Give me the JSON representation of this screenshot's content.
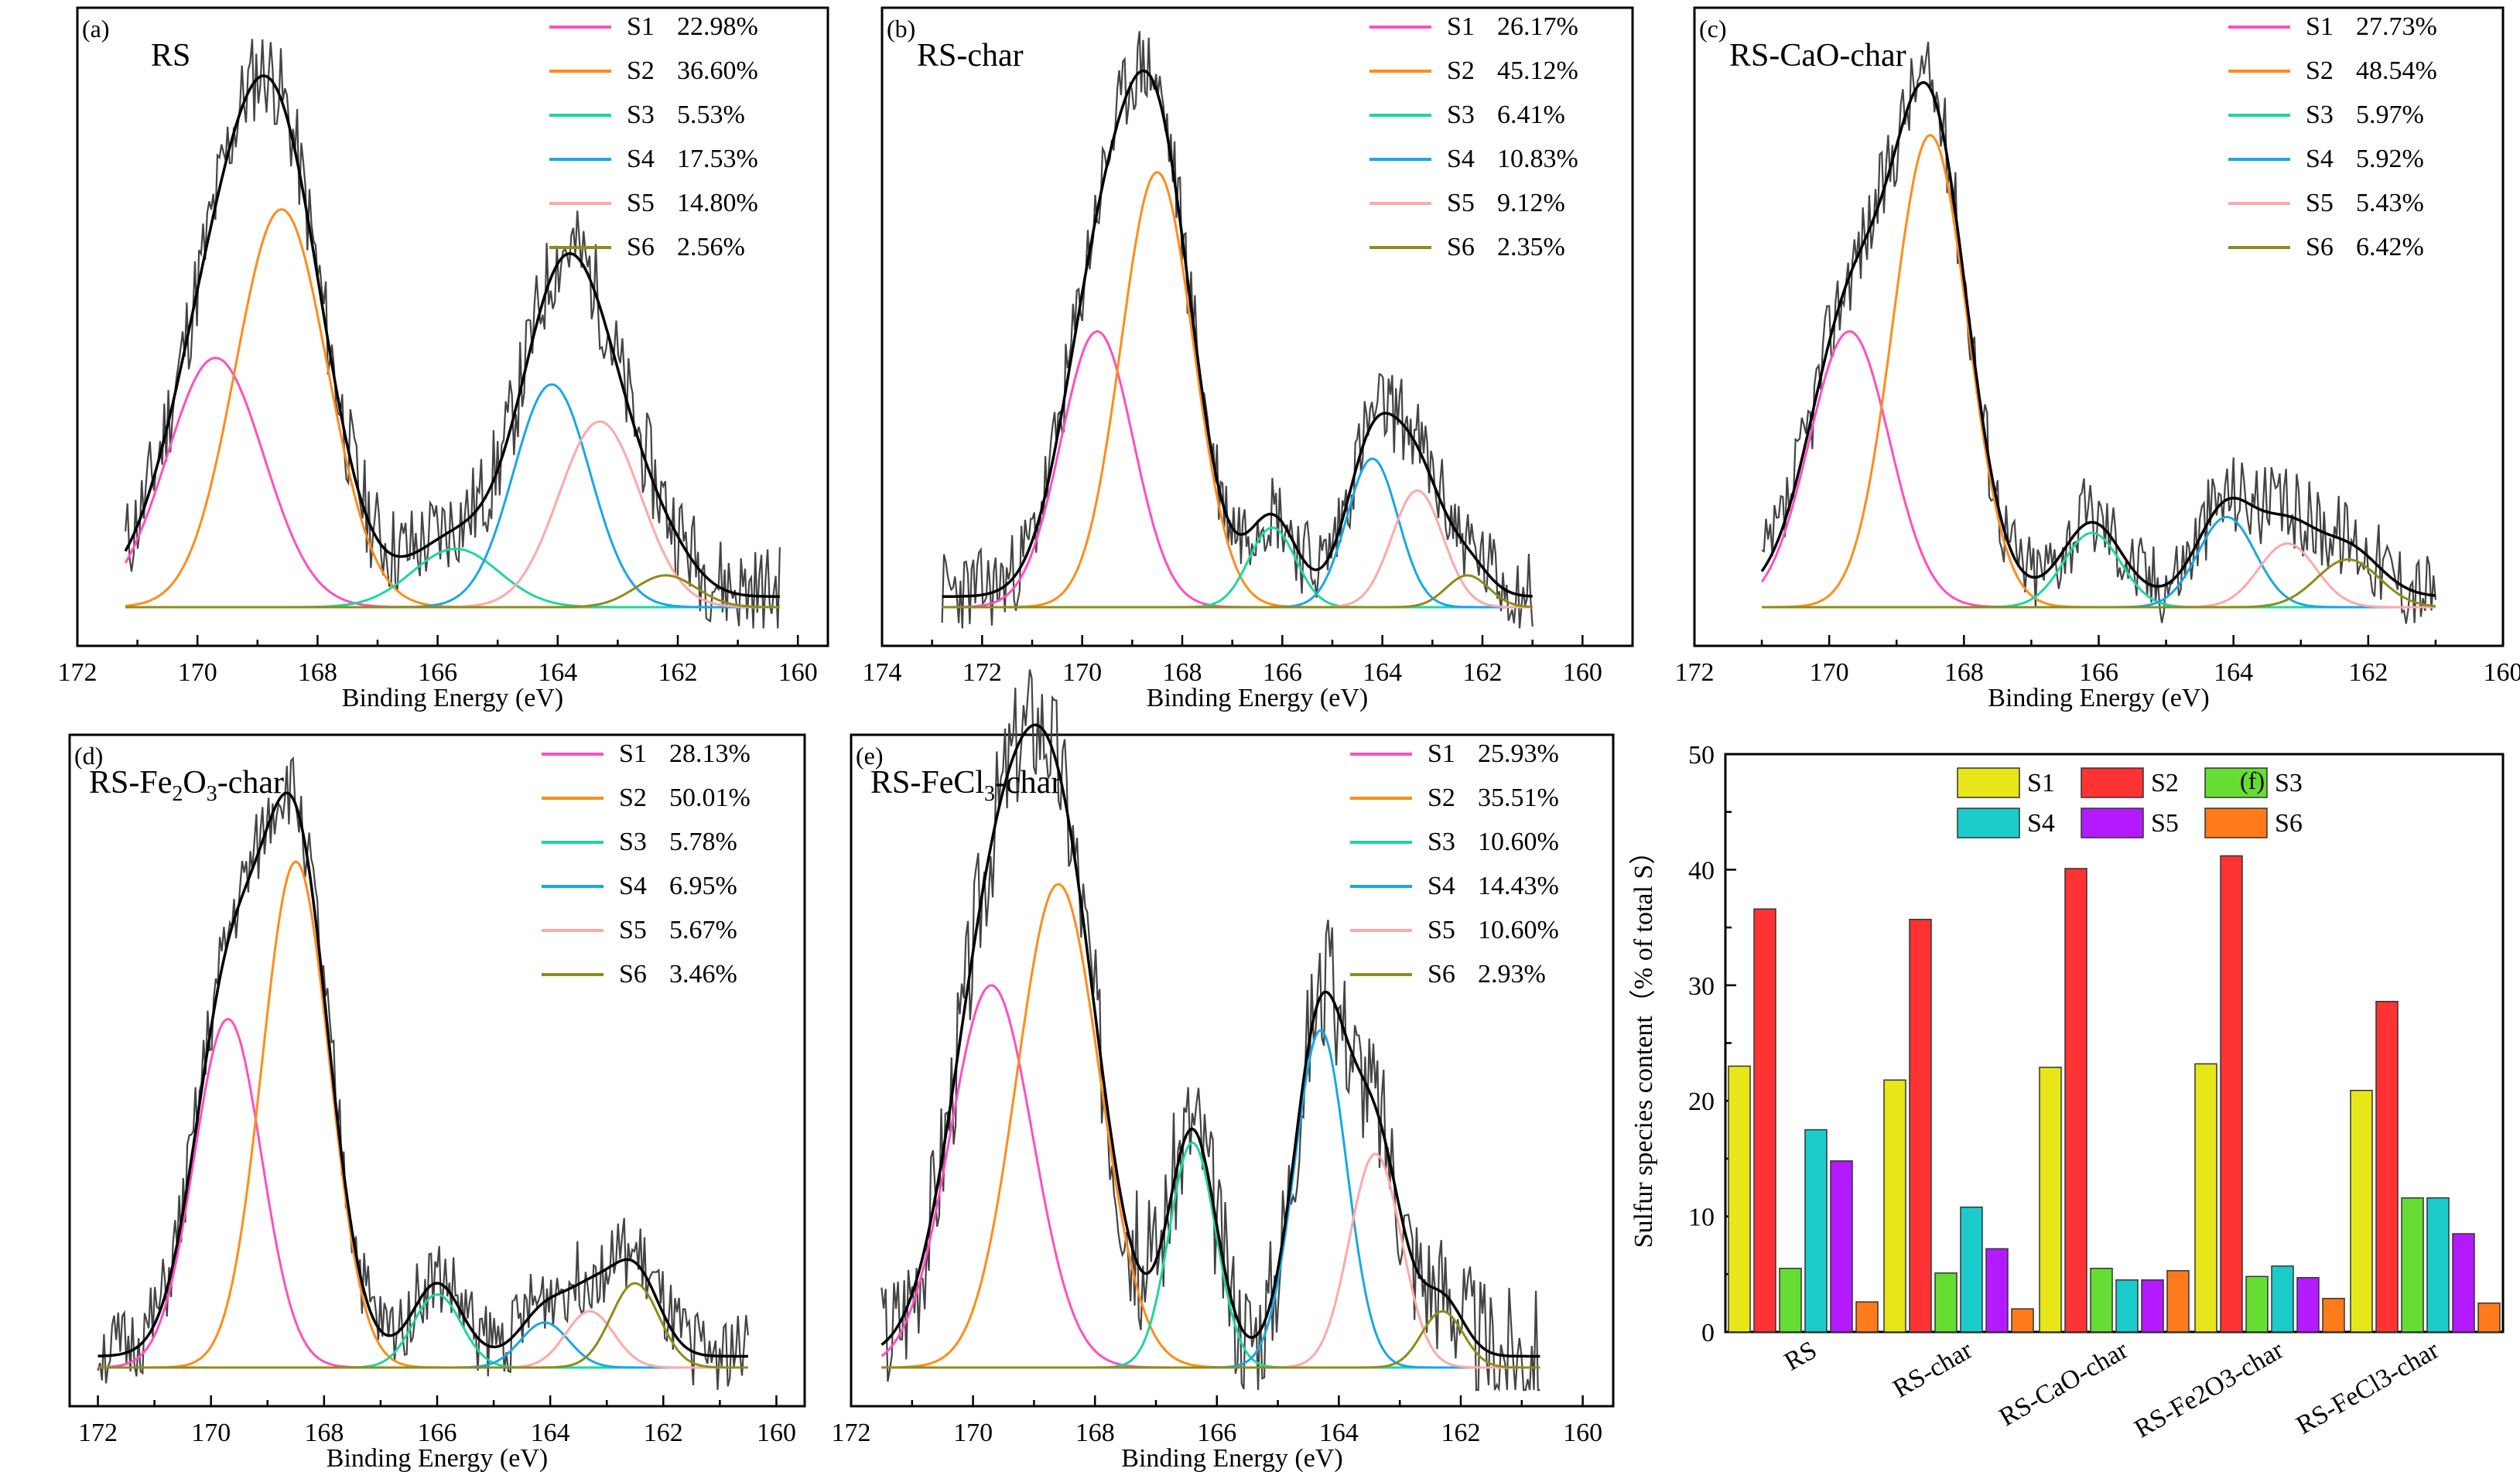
{
  "chart_data": [
    {
      "panel": "(a)",
      "type": "line",
      "title": "RS",
      "xlabel": "Binding Energy (eV)",
      "xlim": [
        172,
        159.5
      ],
      "xticks": [
        "172",
        "170",
        "168",
        "166",
        "164",
        "162",
        "160"
      ],
      "ylim": [
        0,
        105
      ],
      "data_xrange": [
        171.2,
        160.3
      ],
      "peaks": [
        {
          "name": "S1",
          "percent": "22.98%",
          "center": 169.7,
          "height": 47,
          "width": 0.95,
          "color": "#ff4fc0"
        },
        {
          "name": "S2",
          "percent": "36.60%",
          "center": 168.6,
          "height": 75,
          "width": 0.9,
          "color": "#ff8c1a"
        },
        {
          "name": "S3",
          "percent": "5.53%",
          "center": 165.7,
          "height": 11,
          "width": 0.85,
          "color": "#1fd6a0"
        },
        {
          "name": "S4",
          "percent": "17.53%",
          "center": 164.1,
          "height": 42,
          "width": 0.75,
          "color": "#1aa7e6"
        },
        {
          "name": "S5",
          "percent": "14.80%",
          "center": 163.3,
          "height": 35,
          "width": 0.8,
          "color": "#ffa8a8"
        },
        {
          "name": "S6",
          "percent": "2.56%",
          "center": 162.2,
          "height": 6,
          "width": 0.6,
          "color": "#8c8c1a"
        }
      ],
      "noise": 9,
      "seed": 11
    },
    {
      "panel": "(b)",
      "type": "line",
      "title": "RS-char",
      "xlabel": "Binding Energy (eV)",
      "xlim": [
        174,
        159
      ],
      "xticks": [
        "174",
        "172",
        "170",
        "168",
        "166",
        "164",
        "162",
        "160"
      ],
      "ylim": [
        0,
        105
      ],
      "data_xrange": [
        172.8,
        161.0
      ],
      "peaks": [
        {
          "name": "S1",
          "percent": "26.17%",
          "center": 169.7,
          "height": 52,
          "width": 0.85,
          "color": "#ff4fc0"
        },
        {
          "name": "S2",
          "percent": "45.12%",
          "center": 168.5,
          "height": 82,
          "width": 0.85,
          "color": "#ff8c1a"
        },
        {
          "name": "S3",
          "percent": "6.41%",
          "center": 166.2,
          "height": 15,
          "width": 0.55,
          "color": "#1fd6a0"
        },
        {
          "name": "S4",
          "percent": "10.83%",
          "center": 164.2,
          "height": 28,
          "width": 0.6,
          "color": "#1aa7e6"
        },
        {
          "name": "S5",
          "percent": "9.12%",
          "center": 163.3,
          "height": 22,
          "width": 0.6,
          "color": "#ffa8a8"
        },
        {
          "name": "S6",
          "percent": "2.35%",
          "center": 162.3,
          "height": 6,
          "width": 0.5,
          "color": "#8c8c1a"
        }
      ],
      "noise": 8,
      "seed": 23
    },
    {
      "panel": "(c)",
      "type": "line",
      "title": "RS-CaO-char",
      "xlabel": "Binding Energy (eV)",
      "xlim": [
        172,
        160
      ],
      "xticks": [
        "172",
        "170",
        "168",
        "166",
        "164",
        "162",
        "160"
      ],
      "ylim": [
        0,
        105
      ],
      "data_xrange": [
        171.0,
        161.0
      ],
      "peaks": [
        {
          "name": "S1",
          "percent": "27.73%",
          "center": 169.7,
          "height": 52,
          "width": 0.7,
          "color": "#ff4fc0"
        },
        {
          "name": "S2",
          "percent": "48.54%",
          "center": 168.5,
          "height": 89,
          "width": 0.65,
          "color": "#ff8c1a"
        },
        {
          "name": "S3",
          "percent": "5.97%",
          "center": 166.1,
          "height": 14,
          "width": 0.5,
          "color": "#1fd6a0"
        },
        {
          "name": "S4",
          "percent": "5.92%",
          "center": 164.1,
          "height": 17,
          "width": 0.5,
          "color": "#1aa7e6"
        },
        {
          "name": "S5",
          "percent": "5.43%",
          "center": 163.2,
          "height": 12,
          "width": 0.5,
          "color": "#ffa8a8"
        },
        {
          "name": "S6",
          "percent": "6.42%",
          "center": 162.3,
          "height": 9,
          "width": 0.55,
          "color": "#8c8c1a"
        }
      ],
      "noise": 8,
      "seed": 37
    },
    {
      "panel": "(d)",
      "type": "line",
      "title": "RS-Fe",
      "title_sub1": "2",
      "title_mid": "O",
      "title_sub2": "3",
      "title_end": "-char",
      "xlabel": "Binding Energy (eV)",
      "xlim": [
        172.5,
        159.5
      ],
      "xticks": [
        "172",
        "170",
        "168",
        "166",
        "164",
        "162",
        "160"
      ],
      "ylim": [
        0,
        105
      ],
      "data_xrange": [
        172.0,
        160.5
      ],
      "peaks": [
        {
          "name": "S1",
          "percent": "28.13%",
          "center": 169.7,
          "height": 62,
          "width": 0.7,
          "color": "#ff4fc0"
        },
        {
          "name": "S2",
          "percent": "50.01%",
          "center": 168.5,
          "height": 90,
          "width": 0.7,
          "color": "#ff8c1a"
        },
        {
          "name": "S3",
          "percent": "5.78%",
          "center": 166.0,
          "height": 13,
          "width": 0.5,
          "color": "#1fd6a0"
        },
        {
          "name": "S4",
          "percent": "6.95%",
          "center": 164.1,
          "height": 8,
          "width": 0.5,
          "color": "#1aa7e6"
        },
        {
          "name": "S5",
          "percent": "5.67%",
          "center": 163.3,
          "height": 10,
          "width": 0.5,
          "color": "#ffa8a8"
        },
        {
          "name": "S6",
          "percent": "3.46%",
          "center": 162.5,
          "height": 15,
          "width": 0.5,
          "color": "#8c8c1a"
        }
      ],
      "noise": 7,
      "seed": 51
    },
    {
      "panel": "(e)",
      "type": "line",
      "title": "RS-FeCl",
      "title_sub1": "3",
      "title_mid": "",
      "title_sub2": "",
      "title_end": "-char",
      "xlabel": "Binding Energy (eV)",
      "xlim": [
        172,
        159.5
      ],
      "xticks": [
        "172",
        "170",
        "168",
        "166",
        "164",
        "162",
        "160"
      ],
      "ylim": [
        0,
        105
      ],
      "data_xrange": [
        171.5,
        160.7
      ],
      "peaks": [
        {
          "name": "S1",
          "percent": "25.93%",
          "center": 169.7,
          "height": 68,
          "width": 0.8,
          "color": "#ff4fc0"
        },
        {
          "name": "S2",
          "percent": "35.51%",
          "center": 168.6,
          "height": 86,
          "width": 0.8,
          "color": "#ff8c1a"
        },
        {
          "name": "S3",
          "percent": "10.60%",
          "center": 166.4,
          "height": 40,
          "width": 0.45,
          "color": "#1fd6a0"
        },
        {
          "name": "S4",
          "percent": "14.43%",
          "center": 164.3,
          "height": 60,
          "width": 0.5,
          "color": "#1aa7e6"
        },
        {
          "name": "S5",
          "percent": "10.60%",
          "center": 163.4,
          "height": 38,
          "width": 0.5,
          "color": "#ffa8a8"
        },
        {
          "name": "S6",
          "percent": "2.93%",
          "center": 162.3,
          "height": 10,
          "width": 0.4,
          "color": "#8c8c1a"
        }
      ],
      "noise": 12,
      "seed": 67
    },
    {
      "panel": "(f)",
      "type": "bar",
      "ylabel": "Sulfur species content（% of total S）",
      "ylim": [
        0,
        50
      ],
      "yticks": [
        "0",
        "10",
        "20",
        "30",
        "40",
        "50"
      ],
      "categories": [
        "RS",
        "RS-char",
        "RS-CaO-char",
        "RS-Fe2O3-char",
        "RS-FeCl3-char"
      ],
      "series": [
        {
          "name": "S1",
          "color": "#e6e619",
          "values": [
            23.0,
            21.8,
            22.9,
            23.2,
            20.9
          ]
        },
        {
          "name": "S2",
          "color": "#ff3333",
          "values": [
            36.6,
            35.7,
            40.1,
            41.2,
            28.6
          ]
        },
        {
          "name": "S3",
          "color": "#66dd33",
          "values": [
            5.5,
            5.1,
            5.5,
            4.8,
            11.6
          ]
        },
        {
          "name": "S4",
          "color": "#1ccccc",
          "values": [
            17.5,
            10.8,
            4.5,
            5.7,
            11.6
          ]
        },
        {
          "name": "S5",
          "color": "#b31aff",
          "values": [
            14.8,
            7.2,
            4.5,
            4.7,
            8.5
          ]
        },
        {
          "name": "S6",
          "color": "#ff7a1a",
          "values": [
            2.6,
            2.0,
            5.3,
            2.9,
            2.5
          ]
        }
      ]
    }
  ]
}
